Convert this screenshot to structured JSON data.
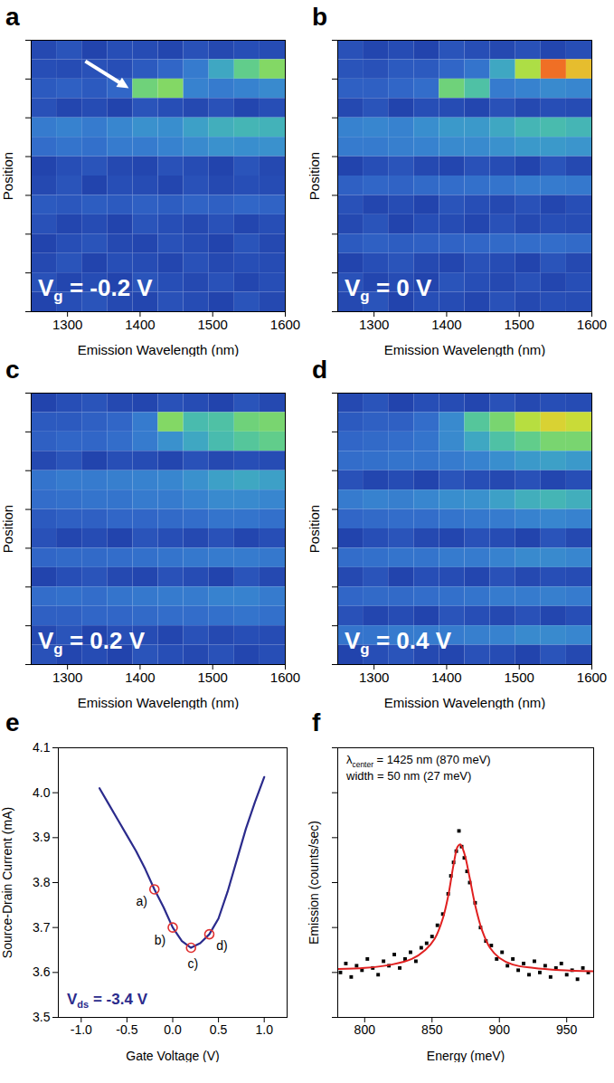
{
  "chart_data": [
    {
      "panel": "a",
      "type": "heatmap",
      "xlabel": "Emission Wavelength (nm)",
      "ylabel": "Position",
      "annotation": {
        "main": "V",
        "subscript": "g",
        "rest": " = -0.2 V"
      },
      "xlim": [
        1250,
        1600
      ],
      "xticks": [
        1300,
        1400,
        1500,
        1600
      ],
      "ylim": [
        0,
        14
      ],
      "yticks": [
        0,
        2,
        4,
        6,
        8,
        10,
        12,
        14
      ],
      "tick_labels": "x",
      "zlim": [
        0,
        1
      ],
      "x_edges": [
        1250,
        1285,
        1320,
        1355,
        1390,
        1425,
        1460,
        1495,
        1530,
        1565,
        1600
      ],
      "y_edges": [
        14,
        13,
        12,
        11,
        10,
        9,
        8,
        7,
        6,
        5,
        4,
        3,
        2,
        1,
        0
      ],
      "cells": [
        [
          0.14,
          0.18,
          0.12,
          0.16,
          0.15,
          0.13,
          0.17,
          0.14,
          0.16,
          0.15
        ],
        [
          0.16,
          0.15,
          0.17,
          0.16,
          0.2,
          0.24,
          0.3,
          0.42,
          0.55,
          0.62
        ],
        [
          0.2,
          0.22,
          0.2,
          0.24,
          0.58,
          0.62,
          0.32,
          0.3,
          0.32,
          0.34
        ],
        [
          0.17,
          0.13,
          0.15,
          0.12,
          0.18,
          0.16,
          0.14,
          0.17,
          0.13,
          0.16
        ],
        [
          0.3,
          0.32,
          0.3,
          0.33,
          0.36,
          0.35,
          0.4,
          0.44,
          0.46,
          0.45
        ],
        [
          0.26,
          0.28,
          0.27,
          0.3,
          0.3,
          0.32,
          0.34,
          0.36,
          0.35,
          0.36
        ],
        [
          0.12,
          0.16,
          0.18,
          0.14,
          0.13,
          0.17,
          0.15,
          0.12,
          0.18,
          0.14
        ],
        [
          0.14,
          0.18,
          0.12,
          0.16,
          0.15,
          0.13,
          0.17,
          0.14,
          0.16,
          0.15
        ],
        [
          0.2,
          0.19,
          0.21,
          0.2,
          0.22,
          0.21,
          0.23,
          0.22,
          0.24,
          0.23
        ],
        [
          0.17,
          0.13,
          0.15,
          0.12,
          0.18,
          0.16,
          0.14,
          0.17,
          0.13,
          0.16
        ],
        [
          0.12,
          0.16,
          0.18,
          0.14,
          0.13,
          0.17,
          0.15,
          0.12,
          0.18,
          0.14
        ],
        [
          0.14,
          0.18,
          0.12,
          0.16,
          0.15,
          0.13,
          0.17,
          0.14,
          0.16,
          0.15
        ],
        [
          0.17,
          0.13,
          0.15,
          0.12,
          0.18,
          0.16,
          0.14,
          0.17,
          0.13,
          0.16
        ],
        [
          0.12,
          0.16,
          0.18,
          0.14,
          0.13,
          0.17,
          0.15,
          0.12,
          0.18,
          0.14
        ]
      ]
    },
    {
      "panel": "b",
      "type": "heatmap",
      "xlabel": "Emission Wavelength (nm)",
      "ylabel": "Position",
      "annotation": {
        "main": "V",
        "subscript": "g",
        "rest": " = 0 V"
      },
      "xlim": [
        1250,
        1600
      ],
      "xticks": [
        1300,
        1400,
        1500,
        1600
      ],
      "ylim": [
        0,
        14
      ],
      "yticks": [
        0,
        2,
        4,
        6,
        8,
        10,
        12,
        14
      ],
      "tick_labels": "x",
      "zlim": [
        0,
        1
      ],
      "x_edges": [
        1250,
        1285,
        1320,
        1355,
        1390,
        1425,
        1460,
        1495,
        1530,
        1565,
        1600
      ],
      "y_edges": [
        14,
        13,
        12,
        11,
        10,
        9,
        8,
        7,
        6,
        5,
        4,
        3,
        2,
        1,
        0
      ],
      "cells": [
        [
          0.17,
          0.13,
          0.15,
          0.12,
          0.18,
          0.16,
          0.14,
          0.17,
          0.13,
          0.16
        ],
        [
          0.18,
          0.17,
          0.2,
          0.2,
          0.24,
          0.28,
          0.42,
          0.7,
          0.95,
          0.85
        ],
        [
          0.22,
          0.22,
          0.24,
          0.26,
          0.58,
          0.5,
          0.3,
          0.32,
          0.34,
          0.33
        ],
        [
          0.14,
          0.18,
          0.12,
          0.16,
          0.15,
          0.13,
          0.17,
          0.14,
          0.16,
          0.15
        ],
        [
          0.32,
          0.33,
          0.32,
          0.35,
          0.38,
          0.38,
          0.42,
          0.46,
          0.48,
          0.46
        ],
        [
          0.3,
          0.3,
          0.31,
          0.32,
          0.34,
          0.34,
          0.36,
          0.38,
          0.38,
          0.37
        ],
        [
          0.12,
          0.16,
          0.18,
          0.14,
          0.13,
          0.17,
          0.15,
          0.12,
          0.18,
          0.14
        ],
        [
          0.22,
          0.24,
          0.23,
          0.25,
          0.26,
          0.27,
          0.28,
          0.3,
          0.3,
          0.29
        ],
        [
          0.17,
          0.13,
          0.15,
          0.12,
          0.18,
          0.16,
          0.14,
          0.17,
          0.13,
          0.16
        ],
        [
          0.14,
          0.18,
          0.12,
          0.16,
          0.15,
          0.13,
          0.17,
          0.14,
          0.16,
          0.15
        ],
        [
          0.2,
          0.22,
          0.21,
          0.22,
          0.23,
          0.24,
          0.25,
          0.26,
          0.26,
          0.25
        ],
        [
          0.12,
          0.16,
          0.18,
          0.14,
          0.13,
          0.17,
          0.15,
          0.12,
          0.18,
          0.14
        ],
        [
          0.17,
          0.13,
          0.15,
          0.12,
          0.18,
          0.16,
          0.14,
          0.17,
          0.13,
          0.16
        ],
        [
          0.14,
          0.18,
          0.12,
          0.16,
          0.15,
          0.13,
          0.17,
          0.14,
          0.16,
          0.15
        ]
      ]
    },
    {
      "panel": "c",
      "type": "heatmap",
      "xlabel": "Emission Wavelength (nm)",
      "ylabel": "Position",
      "annotation": {
        "main": "V",
        "subscript": "g",
        "rest": " = 0.2 V"
      },
      "xlim": [
        1250,
        1600
      ],
      "xticks": [
        1300,
        1400,
        1500,
        1600
      ],
      "ylim": [
        0,
        14
      ],
      "yticks": [
        0,
        2,
        4,
        6,
        8,
        10,
        12,
        14
      ],
      "tick_labels": "x",
      "zlim": [
        0,
        1
      ],
      "x_edges": [
        1250,
        1285,
        1320,
        1355,
        1390,
        1425,
        1460,
        1495,
        1530,
        1565,
        1600
      ],
      "y_edges": [
        14,
        13,
        12,
        11,
        10,
        9,
        8,
        7,
        6,
        5,
        4,
        3,
        2,
        1,
        0
      ],
      "cells": [
        [
          0.12,
          0.16,
          0.18,
          0.14,
          0.13,
          0.17,
          0.15,
          0.12,
          0.18,
          0.14
        ],
        [
          0.2,
          0.2,
          0.22,
          0.24,
          0.3,
          0.62,
          0.48,
          0.5,
          0.58,
          0.6
        ],
        [
          0.22,
          0.24,
          0.24,
          0.26,
          0.3,
          0.36,
          0.42,
          0.48,
          0.52,
          0.55
        ],
        [
          0.14,
          0.18,
          0.12,
          0.16,
          0.15,
          0.13,
          0.17,
          0.14,
          0.16,
          0.15
        ],
        [
          0.28,
          0.3,
          0.3,
          0.31,
          0.32,
          0.33,
          0.36,
          0.4,
          0.42,
          0.4
        ],
        [
          0.26,
          0.27,
          0.28,
          0.28,
          0.3,
          0.3,
          0.32,
          0.34,
          0.34,
          0.33
        ],
        [
          0.2,
          0.22,
          0.22,
          0.24,
          0.24,
          0.25,
          0.26,
          0.28,
          0.28,
          0.27
        ],
        [
          0.17,
          0.13,
          0.15,
          0.12,
          0.18,
          0.16,
          0.14,
          0.17,
          0.13,
          0.16
        ],
        [
          0.24,
          0.25,
          0.25,
          0.26,
          0.27,
          0.28,
          0.29,
          0.3,
          0.3,
          0.29
        ],
        [
          0.12,
          0.16,
          0.18,
          0.14,
          0.13,
          0.17,
          0.15,
          0.12,
          0.18,
          0.14
        ],
        [
          0.26,
          0.27,
          0.26,
          0.28,
          0.29,
          0.3,
          0.3,
          0.32,
          0.32,
          0.3
        ],
        [
          0.22,
          0.22,
          0.24,
          0.24,
          0.25,
          0.26,
          0.26,
          0.27,
          0.28,
          0.27
        ],
        [
          0.14,
          0.18,
          0.12,
          0.16,
          0.15,
          0.13,
          0.17,
          0.14,
          0.16,
          0.15
        ],
        [
          0.17,
          0.13,
          0.15,
          0.12,
          0.18,
          0.16,
          0.14,
          0.17,
          0.13,
          0.16
        ]
      ]
    },
    {
      "panel": "d",
      "type": "heatmap",
      "xlabel": "Emission Wavelength (nm)",
      "ylabel": "Position",
      "annotation": {
        "main": "V",
        "subscript": "g",
        "rest": " = 0.4 V"
      },
      "xlim": [
        1250,
        1600
      ],
      "xticks": [
        1300,
        1400,
        1500,
        1600
      ],
      "ylim": [
        0,
        14
      ],
      "yticks": [
        0,
        2,
        4,
        6,
        8,
        10,
        12,
        14
      ],
      "tick_labels": "x",
      "zlim": [
        0,
        1
      ],
      "x_edges": [
        1250,
        1285,
        1320,
        1355,
        1390,
        1425,
        1460,
        1495,
        1530,
        1565,
        1600
      ],
      "y_edges": [
        14,
        13,
        12,
        11,
        10,
        9,
        8,
        7,
        6,
        5,
        4,
        3,
        2,
        1,
        0
      ],
      "cells": [
        [
          0.14,
          0.18,
          0.12,
          0.16,
          0.15,
          0.13,
          0.17,
          0.14,
          0.16,
          0.15
        ],
        [
          0.2,
          0.22,
          0.22,
          0.26,
          0.34,
          0.52,
          0.6,
          0.72,
          0.8,
          0.76
        ],
        [
          0.24,
          0.25,
          0.26,
          0.28,
          0.34,
          0.42,
          0.5,
          0.55,
          0.6,
          0.6
        ],
        [
          0.26,
          0.27,
          0.28,
          0.28,
          0.3,
          0.32,
          0.35,
          0.38,
          0.4,
          0.38
        ],
        [
          0.17,
          0.13,
          0.15,
          0.12,
          0.18,
          0.16,
          0.14,
          0.17,
          0.13,
          0.16
        ],
        [
          0.3,
          0.32,
          0.31,
          0.33,
          0.35,
          0.36,
          0.4,
          0.44,
          0.46,
          0.44
        ],
        [
          0.24,
          0.25,
          0.26,
          0.26,
          0.28,
          0.29,
          0.3,
          0.32,
          0.33,
          0.32
        ],
        [
          0.12,
          0.16,
          0.18,
          0.14,
          0.13,
          0.17,
          0.15,
          0.12,
          0.18,
          0.14
        ],
        [
          0.26,
          0.27,
          0.28,
          0.28,
          0.3,
          0.3,
          0.32,
          0.34,
          0.34,
          0.33
        ],
        [
          0.14,
          0.18,
          0.12,
          0.16,
          0.15,
          0.13,
          0.17,
          0.14,
          0.16,
          0.15
        ],
        [
          0.24,
          0.25,
          0.25,
          0.26,
          0.27,
          0.28,
          0.3,
          0.3,
          0.31,
          0.3
        ],
        [
          0.17,
          0.13,
          0.15,
          0.12,
          0.18,
          0.16,
          0.14,
          0.17,
          0.13,
          0.16
        ],
        [
          0.28,
          0.28,
          0.3,
          0.3,
          0.3,
          0.31,
          0.32,
          0.34,
          0.34,
          0.33
        ],
        [
          0.12,
          0.16,
          0.18,
          0.14,
          0.13,
          0.17,
          0.15,
          0.12,
          0.18,
          0.14
        ]
      ]
    },
    {
      "panel": "e",
      "type": "line",
      "xlabel": "Gate Voltage (V)",
      "ylabel": "Source-Drain Current (mA)",
      "annotation": {
        "main": "V",
        "subscript": "ds",
        "rest": " = -3.4 V"
      },
      "color": "#2b2b8c",
      "xlim": [
        -1.25,
        1.25
      ],
      "xticks": [
        {
          "value": -1,
          "label": "-1.0"
        },
        {
          "value": -0.5,
          "label": "-0.5"
        },
        {
          "value": 0,
          "label": "0.0"
        },
        {
          "value": 0.5,
          "label": "0.5"
        },
        {
          "value": 1,
          "label": "1.0"
        }
      ],
      "ylim": [
        3.5,
        4.1
      ],
      "yticks": [
        3.5,
        3.6,
        3.7,
        3.8,
        3.9,
        {
          "value": 4,
          "label": "4.0"
        },
        4.1
      ],
      "x": [
        -0.8,
        -0.7,
        -0.6,
        -0.5,
        -0.4,
        -0.3,
        -0.2,
        -0.1,
        0,
        0.1,
        0.2,
        0.3,
        0.4,
        0.5,
        0.6,
        0.7,
        0.8,
        0.9,
        1.0
      ],
      "values": [
        4.01,
        3.975,
        3.94,
        3.905,
        3.87,
        3.83,
        3.785,
        3.745,
        3.7,
        3.67,
        3.655,
        3.665,
        3.685,
        3.72,
        3.78,
        3.85,
        3.92,
        3.98,
        4.035
      ],
      "markers": {
        "x": [
          -0.2,
          0,
          0.2,
          0.4
        ],
        "values": [
          3.785,
          3.7,
          3.655,
          3.685
        ],
        "labels": [
          "a)",
          "b)",
          "c)",
          "d)"
        ],
        "color": "#e03030",
        "marker": "circle"
      }
    },
    {
      "panel": "f",
      "type": "scatter",
      "xlabel": "Energy (meV)",
      "ylabel": "Emission (counts/sec)",
      "annotations": [
        {
          "main": "λ",
          "subscript": "center",
          "rest": " = 1425 nm (870 meV)"
        },
        {
          "main": "width = 50 nm (27 meV)"
        }
      ],
      "color": "#000000",
      "marker": "square",
      "tick_labels": "x",
      "xlim": [
        780,
        970
      ],
      "xticks": [
        800,
        850,
        900,
        950
      ],
      "ylim": [
        0,
        12
      ],
      "yticks": [
        0,
        2,
        4,
        6,
        8,
        10,
        12
      ],
      "x": [
        782,
        786,
        790,
        794,
        798,
        802,
        806,
        810,
        814,
        818,
        822,
        826,
        830,
        834,
        838,
        842,
        846,
        850,
        854,
        858,
        862,
        864,
        866,
        868,
        870,
        872,
        874,
        876,
        878,
        882,
        886,
        890,
        894,
        898,
        902,
        906,
        910,
        914,
        918,
        922,
        926,
        930,
        934,
        938,
        942,
        946,
        950,
        954,
        958,
        962,
        966
      ],
      "values": [
        2.0,
        2.4,
        1.8,
        2.3,
        2.1,
        2.6,
        2.2,
        1.9,
        2.5,
        2.3,
        2.8,
        2.2,
        2.6,
        2.9,
        2.5,
        3.1,
        3.3,
        3.6,
        4.1,
        4.6,
        5.5,
        6.3,
        6.9,
        7.4,
        8.3,
        7.6,
        7.1,
        6.5,
        6.0,
        5.1,
        4.0,
        3.4,
        3.2,
        2.6,
        2.9,
        2.3,
        2.6,
        2.1,
        2.4,
        1.9,
        2.5,
        2.0,
        2.3,
        1.8,
        2.2,
        2.4,
        1.9,
        2.1,
        1.7,
        2.2,
        2.0
      ],
      "fit": {
        "color": "#e02020",
        "line_style": "solid",
        "x": [
          780,
          800,
          820,
          835,
          845,
          852,
          858,
          862,
          866,
          869,
          871,
          874,
          878,
          882,
          887,
          893,
          900,
          910,
          925,
          945,
          970
        ],
        "values": [
          2.15,
          2.2,
          2.35,
          2.6,
          3.0,
          3.5,
          4.4,
          5.4,
          6.8,
          7.6,
          7.7,
          7.3,
          6.2,
          5.0,
          3.9,
          3.1,
          2.65,
          2.35,
          2.2,
          2.1,
          2.05
        ]
      }
    }
  ]
}
